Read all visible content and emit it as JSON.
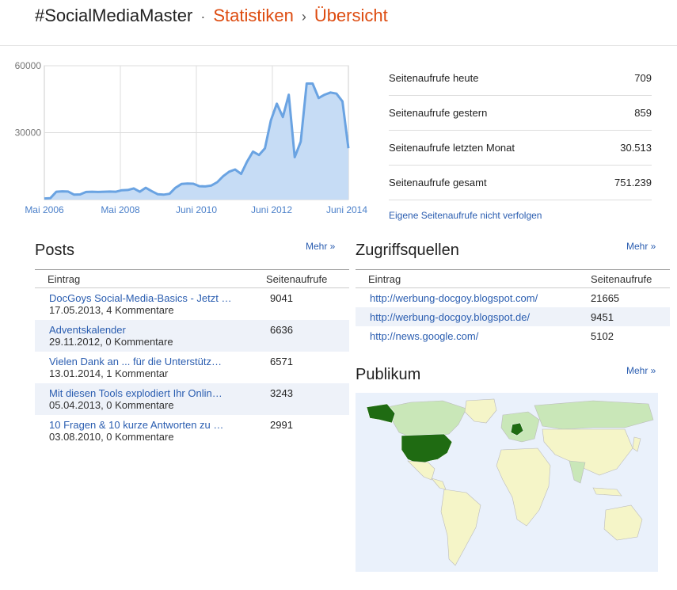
{
  "breadcrumb": {
    "blog_name": "#SocialMediaMaster",
    "separator_1": "·",
    "section": "Statistiken",
    "separator_2": "›",
    "page": "Übersicht"
  },
  "chart_data": {
    "type": "area",
    "title": "",
    "x_labels": [
      "Mai 2006",
      "Mai 2008",
      "Juni 2010",
      "Juni 2012",
      "Juni 2014"
    ],
    "y_ticks": [
      30000,
      60000
    ],
    "y_tick_labels": [
      "30000",
      "60000"
    ],
    "ylim": [
      0,
      60000
    ],
    "grid": true,
    "series": [
      {
        "values": [
          500,
          600,
          3500,
          3700,
          3600,
          2200,
          2300,
          3400,
          3500,
          3400,
          3500,
          3600,
          3500,
          4200,
          4300,
          5000,
          3500,
          5300,
          3800,
          2400,
          2200,
          2600,
          5300,
          7000,
          7200,
          7100,
          6000,
          5900,
          6300,
          7800,
          10500,
          12500,
          13500,
          11500,
          17000,
          21500,
          20000,
          23000,
          35500,
          43000,
          37000,
          47000,
          19000,
          26000,
          52000,
          52000,
          45500,
          47000,
          48000,
          47500,
          44000,
          23000
        ]
      }
    ],
    "color": "#6aa3e2",
    "fill": "#c6dcf5"
  },
  "stats": {
    "rows": [
      {
        "label": "Seitenaufrufe heute",
        "value": "709"
      },
      {
        "label": "Seitenaufrufe gestern",
        "value": "859"
      },
      {
        "label": "Seitenaufrufe letzten Monat",
        "value": "30.513"
      },
      {
        "label": "Seitenaufrufe gesamt",
        "value": "751.239"
      }
    ],
    "dont_track_link": "Eigene Seitenaufrufe nicht verfolgen"
  },
  "posts": {
    "title": "Posts",
    "more": "Mehr »",
    "col_entry": "Eintrag",
    "col_views": "Seitenaufrufe",
    "rows": [
      {
        "title": "DocGoys Social-Media-Basics - Jetzt …",
        "meta": "17.05.2013, 4 Kommentare",
        "views": "9041"
      },
      {
        "title": "Adventskalender",
        "meta": "29.11.2012, 0 Kommentare",
        "views": "6636"
      },
      {
        "title": "Vielen Dank an ... für die Unterstütz…",
        "meta": "13.01.2014, 1 Kommentar",
        "views": "6571"
      },
      {
        "title": "Mit diesen Tools explodiert Ihr Onlin…",
        "meta": "05.04.2013, 0 Kommentare",
        "views": "3243"
      },
      {
        "title": "10 Fragen & 10 kurze Antworten zu …",
        "meta": "03.08.2010, 0 Kommentare",
        "views": "2991"
      }
    ]
  },
  "sources": {
    "title": "Zugriffsquellen",
    "more": "Mehr »",
    "col_entry": "Eintrag",
    "col_views": "Seitenaufrufe",
    "rows": [
      {
        "url": "http://werbung-docgoy.blogspot.com/",
        "views": "21665"
      },
      {
        "url": "http://werbung-docgoy.blogspot.de/",
        "views": "9451"
      },
      {
        "url": "http://news.google.com/",
        "views": "5102"
      }
    ]
  },
  "audience": {
    "title": "Publikum",
    "more": "Mehr »",
    "ocean_color": "#eaf1fb",
    "low_color": "#f5f5c8",
    "mid_color": "#c9e7b8",
    "high_color": "#1f6b12"
  }
}
